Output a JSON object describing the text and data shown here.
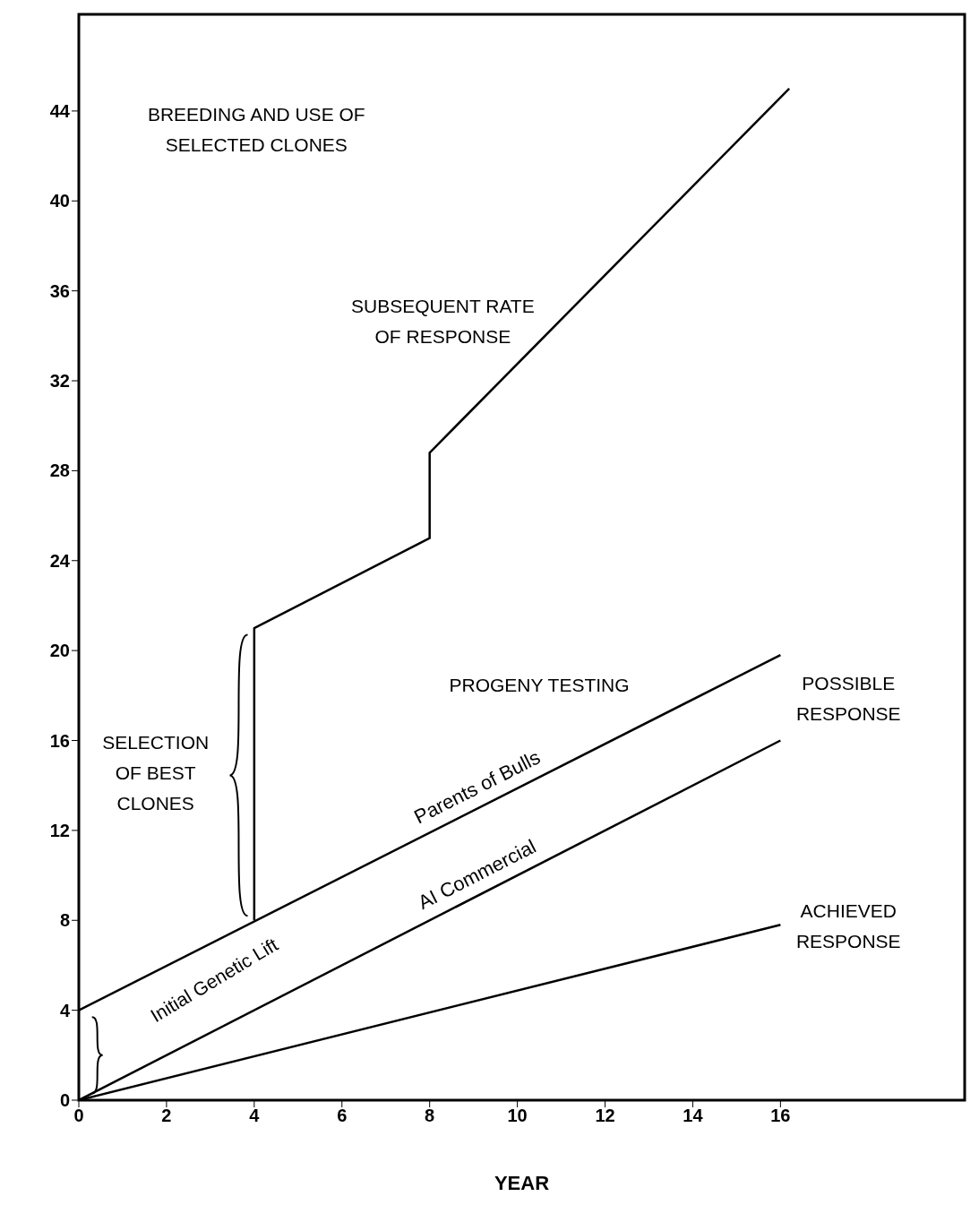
{
  "chart_data": {
    "type": "line",
    "xlabel": "YEAR",
    "xlim": [
      0,
      20.2
    ],
    "ylim": [
      0,
      48.3
    ],
    "xticks": [
      0,
      2,
      4,
      6,
      8,
      10,
      12,
      14,
      16
    ],
    "yticks": [
      0,
      4,
      8,
      12,
      16,
      20,
      24,
      28,
      32,
      36,
      40,
      44
    ],
    "marker": "none",
    "line_style": "solid",
    "series": [
      {
        "color": "#000000",
        "x": [
          4,
          4,
          8,
          8,
          16.2
        ],
        "values": [
          8,
          21,
          25,
          28.8,
          45
        ]
      },
      {
        "name": "Parents of Bulls",
        "color": "#000000",
        "x": [
          0,
          16
        ],
        "values": [
          4,
          19.8
        ]
      },
      {
        "name": "AI Commercial",
        "color": "#000000",
        "x": [
          0,
          16
        ],
        "values": [
          0,
          16
        ]
      },
      {
        "color": "#000000",
        "x": [
          0,
          16
        ],
        "values": [
          0,
          7.8
        ]
      }
    ],
    "annotations": [
      "BREEDING AND USE OF\nSELECTED CLONES",
      "SUBSEQUENT RATE\nOF RESPONSE",
      "PROGENY TESTING",
      "SELECTION\nOF BEST\nCLONES",
      "POSSIBLE\nRESPONSE",
      "ACHIEVED\nRESPONSE",
      "Initial Genetic Lift"
    ]
  }
}
